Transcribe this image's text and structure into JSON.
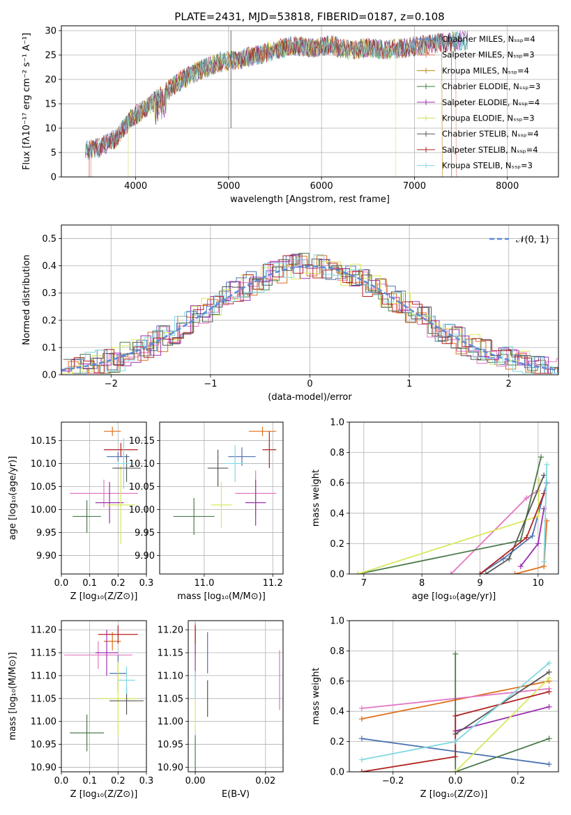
{
  "title": "PLATE=2431, MJD=53818, FIBERID=0187, z=0.108",
  "colors": {
    "chabrier_miles": "#5b7bd5",
    "salpeter_miles": "#e07b6a",
    "kroupa_miles": "#b8860b",
    "chabrier_elodie": "#3b7f3b",
    "salpeter_elodie": "#9b30b0",
    "kroupa_elodie": "#d4e157",
    "chabrier_stelib": "#555555",
    "salpeter_stelib": "#b22222",
    "kroupa_stelib": "#7fd8e0",
    "normal": "#5b8bd8",
    "p1": "#4c72b0",
    "p2": "#dd6f1a",
    "p3": "#e377c2",
    "p4": "#4a7a4a",
    "p5": "#9b30b0",
    "p6": "#d9e85a",
    "p7": "#555555",
    "p8": "#b22222",
    "p9": "#7fd8e0"
  },
  "chart_data": [
    {
      "id": "spectrum",
      "type": "line",
      "title": "PLATE=2431, MJD=53818, FIBERID=0187, z=0.108",
      "xlabel": "wavelength [Angstrom, rest frame]",
      "ylabel": "Flux [fλ10⁻¹⁷ erg cm⁻² s⁻¹ A⁻¹]",
      "xlim": [
        3200,
        8550
      ],
      "ylim": [
        0,
        31
      ],
      "xticks": [
        "4000",
        "5000",
        "6000",
        "7000",
        "8000"
      ],
      "yticks": [
        "0",
        "5",
        "10",
        "15",
        "20",
        "25",
        "30"
      ],
      "legend_position": "upper-right",
      "legend": [
        "Chabrier MILES, Nₛₛₚ=4",
        "Salpeter MILES, Nₛₛₚ=3",
        "Kroupa MILES, Nₛₛₚ=4",
        "Chabrier ELODIE, Nₛₛₚ=3",
        "Salpeter ELODIE, Nₛₛₚ=4",
        "Kroupa ELODIE, Nₛₛₚ=3",
        "Chabrier STELIB, Nₛₛₚ=4",
        "Salpeter STELIB, Nₛₛₚ=4",
        "Kroupa STELIB, Nₛₛₚ=3"
      ],
      "continuum": [
        [
          3450,
          5.5
        ],
        [
          3600,
          6
        ],
        [
          3800,
          8
        ],
        [
          3950,
          12
        ],
        [
          4100,
          14
        ],
        [
          4300,
          17
        ],
        [
          4500,
          20
        ],
        [
          4700,
          22
        ],
        [
          4900,
          23.5
        ],
        [
          5100,
          24
        ],
        [
          5300,
          25
        ],
        [
          5500,
          26
        ],
        [
          5700,
          27
        ],
        [
          5900,
          26.5
        ],
        [
          6100,
          27
        ],
        [
          6300,
          26
        ],
        [
          6500,
          26.5
        ],
        [
          6700,
          26
        ],
        [
          6900,
          26.5
        ],
        [
          7100,
          27
        ],
        [
          7300,
          27.5
        ],
        [
          7500,
          28
        ]
      ]
    },
    {
      "id": "residuals",
      "type": "bar",
      "xlabel": "(data-model)/error",
      "ylabel": "Normed distribution",
      "xlim": [
        -2.5,
        2.5
      ],
      "ylim": [
        0,
        0.55
      ],
      "xticks": [
        "−2",
        "−1",
        "0",
        "1",
        "2"
      ],
      "yticks": [
        "0.0",
        "0.1",
        "0.2",
        "0.3",
        "0.4",
        "0.5"
      ],
      "legend": [
        "𝒩(0, 1)"
      ],
      "legend_position": "upper-right"
    },
    {
      "id": "age_vs_z",
      "type": "scatter",
      "xlabel": "Z [log₁₀(Z/Z⊙)]",
      "ylabel": "age  [log₁₀(age/yr)]",
      "xlim": [
        0,
        0.3
      ],
      "ylim": [
        9.86,
        10.19
      ],
      "xticks": [
        "0.0",
        "0.1",
        "0.2",
        "0.3"
      ],
      "yticks": [
        "9.90",
        "9.95",
        "10.00",
        "10.05",
        "10.10",
        "10.15"
      ],
      "points": [
        {
          "x": 0.2,
          "y": 10.115,
          "xerr": 0.04,
          "yerr": 0.01
        },
        {
          "x": 0.18,
          "y": 10.17,
          "xerr": 0.03,
          "yerr": 0.01
        },
        {
          "x": 0.15,
          "y": 10.035,
          "xerr": 0.12,
          "yerr": 0.03
        },
        {
          "x": 0.09,
          "y": 9.985,
          "xerr": 0.05,
          "yerr": 0.035
        },
        {
          "x": 0.17,
          "y": 10.015,
          "xerr": 0.05,
          "yerr": 0.045
        },
        {
          "x": 0.21,
          "y": 10.01,
          "xerr": 0.05,
          "yerr": 0.085
        },
        {
          "x": 0.23,
          "y": 10.09,
          "xerr": 0.05,
          "yerr": 0.03
        },
        {
          "x": 0.21,
          "y": 10.13,
          "xerr": 0.06,
          "yerr": 0.015
        },
        {
          "x": 0.22,
          "y": 10.1,
          "xerr": 0.03,
          "yerr": 0.055
        }
      ]
    },
    {
      "id": "age_vs_mass",
      "type": "scatter",
      "xlabel": "mass [log₁₀(M/M⊙)]",
      "xlim": [
        10.87,
        11.23
      ],
      "ylim": [
        9.86,
        10.19
      ],
      "xticks": [
        "11.0",
        "11.2"
      ],
      "yticks": [
        "9.90",
        "9.95",
        "10.00",
        "10.05",
        "10.10",
        "10.15"
      ],
      "points": [
        {
          "x": 11.11,
          "y": 10.115,
          "xerr": 0.04,
          "yerr": 0.02
        },
        {
          "x": 11.17,
          "y": 10.17,
          "xerr": 0.04,
          "yerr": 0.01
        },
        {
          "x": 11.15,
          "y": 10.035,
          "xerr": 0.06,
          "yerr": 0.05
        },
        {
          "x": 10.97,
          "y": 9.985,
          "xerr": 0.06,
          "yerr": 0.04
        },
        {
          "x": 11.15,
          "y": 10.015,
          "xerr": 0.03,
          "yerr": 0.05
        },
        {
          "x": 11.05,
          "y": 10.01,
          "xerr": 0.03,
          "yerr": 0.05
        },
        {
          "x": 11.04,
          "y": 10.09,
          "xerr": 0.03,
          "yerr": 0.04
        },
        {
          "x": 11.19,
          "y": 10.13,
          "xerr": 0.02,
          "yerr": 0.04
        },
        {
          "x": 11.09,
          "y": 10.1,
          "xerr": 0.03,
          "yerr": 0.04
        }
      ]
    },
    {
      "id": "mass_weight_vs_age",
      "type": "line",
      "xlabel": "age  [log₁₀(age/yr)]",
      "ylabel": "mass weight",
      "xlim": [
        6.75,
        10.35
      ],
      "ylim": [
        0,
        1
      ],
      "xticks": [
        "7",
        "8",
        "9",
        "10"
      ],
      "yticks": [
        "0.0",
        "0.2",
        "0.4",
        "0.6",
        "0.8",
        "1.0"
      ],
      "series": [
        {
          "values": [
            [
              9.0,
              0.0
            ],
            [
              9.4,
              0.1
            ],
            [
              9.9,
              0.25
            ],
            [
              10.15,
              0.6
            ]
          ]
        },
        {
          "values": [
            [
              9.6,
              0.0
            ],
            [
              10.1,
              0.05
            ],
            [
              10.15,
              0.35
            ]
          ]
        },
        {
          "values": [
            [
              8.5,
              0.0
            ],
            [
              9.8,
              0.5
            ],
            [
              10.0,
              0.55
            ]
          ]
        },
        {
          "values": [
            [
              6.9,
              0.0
            ],
            [
              9.7,
              0.22
            ],
            [
              10.05,
              0.77
            ]
          ]
        },
        {
          "values": [
            [
              9.7,
              0.05
            ],
            [
              10.0,
              0.2
            ],
            [
              10.1,
              0.43
            ]
          ]
        },
        {
          "values": [
            [
              6.9,
              0.0
            ],
            [
              10.0,
              0.38
            ],
            [
              10.02,
              0.62
            ]
          ]
        },
        {
          "values": [
            [
              9.1,
              0.0
            ],
            [
              9.5,
              0.1
            ],
            [
              10.1,
              0.65
            ]
          ]
        },
        {
          "values": [
            [
              9.0,
              0.0
            ],
            [
              9.8,
              0.24
            ],
            [
              10.1,
              0.53
            ]
          ]
        },
        {
          "values": [
            [
              10.1,
              0.08
            ],
            [
              10.15,
              0.72
            ]
          ]
        }
      ]
    },
    {
      "id": "mass_vs_z",
      "type": "scatter",
      "xlabel": "Z [log₁₀(Z/Z⊙)]",
      "ylabel": "mass [log₁₀(M/M⊙)]",
      "xlim": [
        0,
        0.3
      ],
      "ylim": [
        10.89,
        11.22
      ],
      "xticks": [
        "0.0",
        "0.1",
        "0.2",
        "0.3"
      ],
      "yticks": [
        "10.90",
        "10.95",
        "11.00",
        "11.05",
        "11.10",
        "11.15",
        "11.20"
      ],
      "points": [
        {
          "x": 0.2,
          "y": 11.105,
          "xerr": 0.03,
          "yerr": 0.04
        },
        {
          "x": 0.18,
          "y": 11.175,
          "xerr": 0.03,
          "yerr": 0.02
        },
        {
          "x": 0.13,
          "y": 11.145,
          "xerr": 0.12,
          "yerr": 0.03
        },
        {
          "x": 0.09,
          "y": 10.975,
          "xerr": 0.06,
          "yerr": 0.04
        },
        {
          "x": 0.16,
          "y": 11.15,
          "xerr": 0.04,
          "yerr": 0.05
        },
        {
          "x": 0.2,
          "y": 11.05,
          "xerr": 0.07,
          "yerr": 0.08
        },
        {
          "x": 0.23,
          "y": 11.045,
          "xerr": 0.06,
          "yerr": 0.03
        },
        {
          "x": 0.2,
          "y": 11.19,
          "xerr": 0.07,
          "yerr": 0.02
        },
        {
          "x": 0.23,
          "y": 11.09,
          "xerr": 0.03,
          "yerr": 0.03
        }
      ]
    },
    {
      "id": "mass_vs_ebv",
      "type": "scatter",
      "xlabel": "E(B-V)",
      "xlim": [
        -0.002,
        0.025
      ],
      "ylim": [
        10.89,
        11.22
      ],
      "xticks": [
        "0.00",
        "0.02"
      ],
      "yticks": [
        "10.90",
        "10.95",
        "11.00",
        "11.05",
        "11.10",
        "11.15",
        "11.20"
      ],
      "points": [
        {
          "x": 0.0035,
          "y": 11.15,
          "xerr": 0,
          "yerr": 0.045
        },
        {
          "x": 0.0,
          "y": 11.18,
          "xerr": 0,
          "yerr": 0.035
        },
        {
          "x": 0.024,
          "y": 11.09,
          "xerr": 0,
          "yerr": 0.065
        },
        {
          "x": 0.0,
          "y": 10.93,
          "xerr": 0,
          "yerr": 0.04
        },
        {
          "x": 0.0,
          "y": 11.15,
          "xerr": 0,
          "yerr": 0.06
        },
        {
          "x": 0.0,
          "y": 11.03,
          "xerr": 0,
          "yerr": 0.05
        },
        {
          "x": 0.0035,
          "y": 11.05,
          "xerr": 0,
          "yerr": 0.04
        },
        {
          "x": 0.0,
          "y": 11.19,
          "xerr": 0,
          "yerr": 0.02
        },
        {
          "x": 0.0,
          "y": 11.08,
          "xerr": 0,
          "yerr": 0.03
        }
      ]
    },
    {
      "id": "mass_weight_vs_z",
      "type": "line",
      "xlabel": "Z [log₁₀(Z/Z⊙)]",
      "ylabel": "mass weight",
      "xlim": [
        -0.34,
        0.33
      ],
      "ylim": [
        0,
        1
      ],
      "xticks": [
        "−0.2",
        "0.0",
        "0.2"
      ],
      "yticks": [
        "0.0",
        "0.2",
        "0.4",
        "0.6",
        "0.8",
        "1.0"
      ],
      "series": [
        {
          "values": [
            [
              -0.3,
              0.22
            ],
            [
              0.3,
              0.05
            ]
          ]
        },
        {
          "values": [
            [
              -0.3,
              0.35
            ],
            [
              0.3,
              0.6
            ]
          ]
        },
        {
          "values": [
            [
              -0.3,
              0.42
            ],
            [
              0.3,
              0.55
            ]
          ]
        },
        {
          "values": [
            [
              0.0,
              0.78
            ],
            [
              0.0,
              0.0
            ],
            [
              0.3,
              0.22
            ]
          ]
        },
        {
          "values": [
            [
              0.0,
              0.27
            ],
            [
              0.3,
              0.43
            ]
          ]
        },
        {
          "values": [
            [
              0.0,
              0.0
            ],
            [
              0.3,
              0.62
            ]
          ]
        },
        {
          "values": [
            [
              0.0,
              0.25
            ],
            [
              0.3,
              0.66
            ]
          ]
        },
        {
          "values": [
            [
              -0.3,
              0.0
            ],
            [
              0.0,
              0.1
            ],
            [
              0.0,
              0.37
            ],
            [
              0.3,
              0.53
            ]
          ]
        },
        {
          "values": [
            [
              -0.3,
              0.08
            ],
            [
              0.0,
              0.2
            ],
            [
              0.3,
              0.72
            ]
          ]
        }
      ]
    }
  ]
}
